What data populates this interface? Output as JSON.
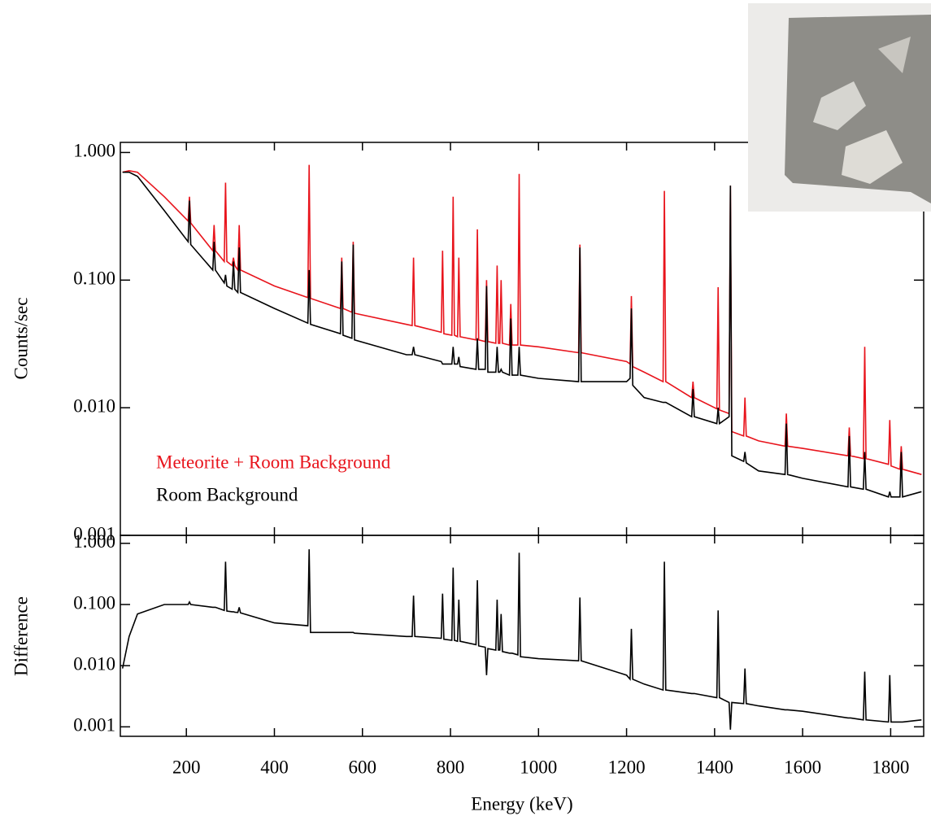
{
  "chart_data": [
    {
      "type": "line",
      "y_label": "Counts/sec",
      "log_y": true,
      "legend": "lower left",
      "xlim": [
        50,
        1875
      ],
      "ylim": [
        0.001,
        1.2
      ],
      "yticks": [
        {
          "value": 0.001,
          "label": "0.001"
        },
        {
          "value": 0.01,
          "label": "0.010"
        },
        {
          "value": 0.1,
          "label": "0.100"
        },
        {
          "value": 1,
          "label": "1.000"
        }
      ],
      "x": [
        55,
        70,
        89,
        150,
        204,
        207,
        210,
        260,
        263,
        266,
        286,
        289,
        292,
        304,
        307,
        310,
        317,
        320,
        323,
        400,
        476,
        479,
        482,
        550,
        553,
        556,
        576,
        579,
        582,
        700,
        713,
        716,
        719,
        779,
        782,
        785,
        803,
        806,
        809,
        816,
        819,
        822,
        858,
        861,
        864,
        879,
        882,
        885,
        903,
        906,
        909,
        912,
        915,
        918,
        934,
        937,
        940,
        953,
        956,
        959,
        1000,
        1091,
        1094,
        1097,
        1200,
        1208,
        1211,
        1214,
        1240,
        1283,
        1286,
        1289,
        1348,
        1351,
        1354,
        1405,
        1408,
        1411,
        1433,
        1436,
        1439,
        1466,
        1469,
        1472,
        1500,
        1560,
        1563,
        1566,
        1600,
        1703,
        1706,
        1709,
        1738,
        1741,
        1744,
        1795,
        1798,
        1801,
        1821,
        1824,
        1827,
        1870
      ],
      "series": [
        {
          "name": "Meteorite + Room Background",
          "color": "#e8141c",
          "values": [
            0.7,
            0.72,
            0.7,
            0.45,
            0.29,
            0.45,
            0.28,
            0.17,
            0.27,
            0.17,
            0.14,
            0.58,
            0.14,
            0.13,
            0.15,
            0.13,
            0.12,
            0.27,
            0.12,
            0.09,
            0.073,
            0.8,
            0.072,
            0.06,
            0.15,
            0.06,
            0.056,
            0.2,
            0.055,
            0.045,
            0.044,
            0.15,
            0.044,
            0.039,
            0.17,
            0.038,
            0.037,
            0.45,
            0.037,
            0.036,
            0.15,
            0.036,
            0.034,
            0.25,
            0.034,
            0.033,
            0.1,
            0.033,
            0.032,
            0.13,
            0.032,
            0.032,
            0.1,
            0.032,
            0.031,
            0.065,
            0.031,
            0.031,
            0.68,
            0.031,
            0.03,
            0.027,
            0.19,
            0.027,
            0.023,
            0.022,
            0.075,
            0.021,
            0.019,
            0.016,
            0.5,
            0.016,
            0.012,
            0.016,
            0.012,
            0.0098,
            0.088,
            0.0096,
            0.009,
            0.55,
            0.0065,
            0.006,
            0.012,
            0.006,
            0.0055,
            0.005,
            0.009,
            0.005,
            0.0048,
            0.0042,
            0.007,
            0.0042,
            0.004,
            0.03,
            0.004,
            0.0036,
            0.008,
            0.0035,
            0.0033,
            0.005,
            0.0033,
            0.003
          ]
        },
        {
          "name": "Room Background",
          "color": "#000000",
          "values": [
            0.7,
            0.7,
            0.65,
            0.35,
            0.2,
            0.42,
            0.19,
            0.12,
            0.2,
            0.12,
            0.095,
            0.11,
            0.09,
            0.085,
            0.14,
            0.085,
            0.08,
            0.18,
            0.08,
            0.06,
            0.046,
            0.12,
            0.045,
            0.038,
            0.14,
            0.037,
            0.035,
            0.19,
            0.034,
            0.026,
            0.026,
            0.03,
            0.026,
            0.023,
            0.022,
            0.022,
            0.022,
            0.03,
            0.022,
            0.022,
            0.025,
            0.021,
            0.02,
            0.035,
            0.02,
            0.02,
            0.09,
            0.019,
            0.019,
            0.03,
            0.019,
            0.019,
            0.02,
            0.019,
            0.018,
            0.05,
            0.018,
            0.018,
            0.03,
            0.018,
            0.017,
            0.016,
            0.18,
            0.016,
            0.016,
            0.017,
            0.06,
            0.015,
            0.012,
            0.011,
            0.011,
            0.011,
            0.0085,
            0.014,
            0.0085,
            0.0075,
            0.01,
            0.0075,
            0.0085,
            0.55,
            0.0042,
            0.0038,
            0.0045,
            0.0037,
            0.0032,
            0.003,
            0.0075,
            0.003,
            0.0028,
            0.0024,
            0.006,
            0.0024,
            0.0023,
            0.0045,
            0.0023,
            0.002,
            0.0022,
            0.002,
            0.002,
            0.0045,
            0.002,
            0.0022
          ]
        }
      ]
    },
    {
      "type": "line",
      "y_label": "Difference",
      "x_label": "Energy (keV)",
      "log_y": true,
      "xlim": [
        50,
        1875
      ],
      "ylim": [
        0.0007,
        1.35
      ],
      "xticks": [
        200,
        400,
        600,
        800,
        1000,
        1200,
        1400,
        1600,
        1800
      ],
      "yticks": [
        {
          "value": 0.001,
          "label": "0.001"
        },
        {
          "value": 0.01,
          "label": "0.010"
        },
        {
          "value": 0.1,
          "label": "0.100"
        },
        {
          "value": 1,
          "label": "1.000"
        }
      ],
      "x": [
        55,
        70,
        89,
        150,
        204,
        207,
        210,
        260,
        263,
        266,
        286,
        289,
        292,
        304,
        307,
        310,
        317,
        320,
        323,
        400,
        476,
        479,
        482,
        550,
        553,
        556,
        576,
        579,
        582,
        700,
        713,
        716,
        719,
        779,
        782,
        785,
        803,
        806,
        809,
        816,
        819,
        822,
        858,
        861,
        864,
        879,
        882,
        885,
        903,
        906,
        909,
        912,
        915,
        918,
        934,
        937,
        940,
        953,
        956,
        959,
        1000,
        1091,
        1094,
        1097,
        1200,
        1208,
        1211,
        1214,
        1240,
        1283,
        1286,
        1289,
        1348,
        1351,
        1354,
        1405,
        1408,
        1411,
        1433,
        1436,
        1439,
        1466,
        1469,
        1472,
        1500,
        1560,
        1563,
        1566,
        1600,
        1703,
        1706,
        1709,
        1738,
        1741,
        1744,
        1795,
        1798,
        1801,
        1821,
        1824,
        1827,
        1870
      ],
      "color": "#000000",
      "values": [
        0.009,
        0.03,
        0.07,
        0.1,
        0.1,
        0.11,
        0.1,
        0.09,
        0.09,
        0.09,
        0.08,
        0.5,
        0.078,
        0.076,
        0.076,
        0.075,
        0.074,
        0.09,
        0.073,
        0.05,
        0.045,
        0.8,
        0.035,
        0.035,
        0.035,
        0.035,
        0.035,
        0.035,
        0.034,
        0.03,
        0.03,
        0.14,
        0.03,
        0.028,
        0.15,
        0.027,
        0.026,
        0.4,
        0.026,
        0.025,
        0.12,
        0.025,
        0.022,
        0.25,
        0.021,
        0.02,
        0.007,
        0.019,
        0.018,
        0.12,
        0.018,
        0.018,
        0.07,
        0.017,
        0.016,
        0.016,
        0.016,
        0.015,
        0.7,
        0.014,
        0.013,
        0.012,
        0.13,
        0.012,
        0.007,
        0.006,
        0.04,
        0.006,
        0.005,
        0.004,
        0.5,
        0.004,
        0.0035,
        0.0035,
        0.0035,
        0.003,
        0.08,
        0.003,
        0.0025,
        0.0009,
        0.0025,
        0.0024,
        0.009,
        0.0024,
        0.0022,
        0.0019,
        0.0019,
        0.0019,
        0.0018,
        0.0014,
        0.0014,
        0.0014,
        0.0013,
        0.008,
        0.0013,
        0.0012,
        0.007,
        0.0012,
        0.0012,
        0.0012,
        0.0012,
        0.0013
      ]
    }
  ]
}
